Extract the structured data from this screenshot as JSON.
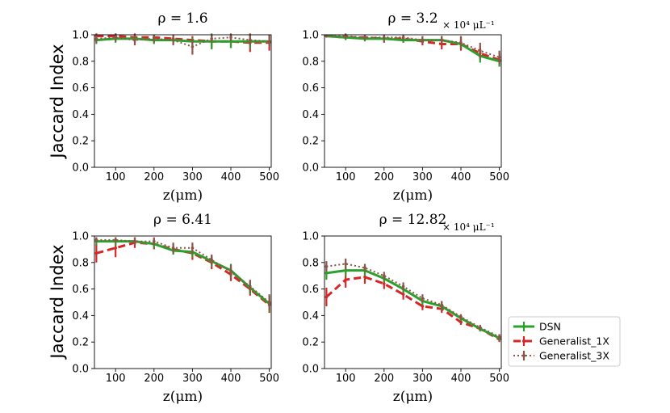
{
  "figure": {
    "shared_ylabel": "Jaccard Index",
    "density_unit": "× 10⁴ μL⁻¹"
  },
  "legend": {
    "entries": [
      {
        "name": "DSN",
        "color": "#2ca02c",
        "style": "solid"
      },
      {
        "name": "Generalist_1X",
        "color": "#d62728",
        "style": "dashed"
      },
      {
        "name": "Generalist_3X",
        "color": "#8c564b",
        "style": "dotted"
      }
    ]
  },
  "chart_data": [
    {
      "type": "line",
      "title": "ρ = 1.6",
      "xlabel": "z(μm)",
      "ylabel": "Jaccard Index",
      "x": [
        50,
        100,
        150,
        200,
        250,
        300,
        350,
        400,
        450,
        500
      ],
      "xlim": [
        45,
        505
      ],
      "ylim": [
        0,
        1.0
      ],
      "xticks": [
        100,
        200,
        300,
        400,
        500
      ],
      "yticks": [
        0.0,
        0.2,
        0.4,
        0.6,
        0.8,
        1.0
      ],
      "ytick_labels": [
        "0.0",
        "0.2",
        "0.4",
        "0.6",
        "0.8",
        "1.0"
      ],
      "series": [
        {
          "name": "DSN",
          "values": [
            0.96,
            0.97,
            0.97,
            0.96,
            0.96,
            0.95,
            0.95,
            0.95,
            0.95,
            0.95
          ],
          "errors": [
            0.03,
            0.03,
            0.03,
            0.03,
            0.03,
            0.03,
            0.06,
            0.05,
            0.05,
            0.04
          ]
        },
        {
          "name": "Generalist_1X",
          "values": [
            0.99,
            0.99,
            0.98,
            0.98,
            0.97,
            0.96,
            0.95,
            0.95,
            0.94,
            0.94
          ],
          "errors": [
            0.02,
            0.02,
            0.03,
            0.02,
            0.03,
            0.03,
            0.05,
            0.05,
            0.07,
            0.06
          ]
        },
        {
          "name": "Generalist_3X",
          "values": [
            0.97,
            0.98,
            0.96,
            0.97,
            0.96,
            0.91,
            0.97,
            0.98,
            0.96,
            0.95
          ],
          "errors": [
            0.03,
            0.03,
            0.04,
            0.03,
            0.04,
            0.06,
            0.03,
            0.03,
            0.04,
            0.04
          ]
        }
      ]
    },
    {
      "type": "line",
      "title": "ρ = 3.2",
      "xlabel": "z(μm)",
      "ylabel": "",
      "x": [
        50,
        100,
        150,
        200,
        250,
        300,
        350,
        400,
        450,
        500
      ],
      "xlim": [
        45,
        505
      ],
      "ylim": [
        0,
        1.0
      ],
      "xticks": [
        100,
        200,
        300,
        400,
        500
      ],
      "yticks": [
        0.0,
        0.2,
        0.4,
        0.6,
        0.8,
        1.0
      ],
      "ytick_labels": [
        "0.0",
        "0.2",
        "0.4",
        "0.6",
        "0.8",
        "1.0"
      ],
      "series": [
        {
          "name": "DSN",
          "values": [
            0.99,
            0.98,
            0.97,
            0.97,
            0.96,
            0.96,
            0.96,
            0.93,
            0.84,
            0.8
          ],
          "errors": [
            0.01,
            0.02,
            0.02,
            0.02,
            0.02,
            0.02,
            0.03,
            0.04,
            0.05,
            0.04
          ]
        },
        {
          "name": "Generalist_1X",
          "values": [
            0.99,
            0.98,
            0.98,
            0.97,
            0.97,
            0.95,
            0.93,
            0.93,
            0.86,
            0.81
          ],
          "errors": [
            0.01,
            0.02,
            0.02,
            0.03,
            0.03,
            0.03,
            0.04,
            0.05,
            0.05,
            0.05
          ]
        },
        {
          "name": "Generalist_3X",
          "values": [
            0.99,
            0.99,
            0.98,
            0.98,
            0.98,
            0.96,
            0.96,
            0.94,
            0.88,
            0.83
          ],
          "errors": [
            0.01,
            0.02,
            0.02,
            0.02,
            0.02,
            0.03,
            0.03,
            0.05,
            0.06,
            0.05
          ]
        }
      ]
    },
    {
      "type": "line",
      "title": "ρ = 6.41",
      "xlabel": "z(μm)",
      "ylabel": "Jaccard Index",
      "x": [
        50,
        100,
        150,
        200,
        250,
        300,
        350,
        400,
        450,
        500
      ],
      "xlim": [
        45,
        505
      ],
      "ylim": [
        0,
        1.0
      ],
      "xticks": [
        100,
        200,
        300,
        400,
        500
      ],
      "yticks": [
        0.0,
        0.2,
        0.4,
        0.6,
        0.8,
        1.0
      ],
      "ytick_labels": [
        "0.0",
        "0.2",
        "0.4",
        "0.6",
        "0.8",
        "1.0"
      ],
      "series": [
        {
          "name": "DSN",
          "values": [
            0.96,
            0.96,
            0.96,
            0.94,
            0.89,
            0.88,
            0.81,
            0.74,
            0.61,
            0.49
          ],
          "errors": [
            0.03,
            0.03,
            0.02,
            0.03,
            0.03,
            0.04,
            0.04,
            0.05,
            0.05,
            0.06
          ]
        },
        {
          "name": "Generalist_1X",
          "values": [
            0.87,
            0.91,
            0.95,
            0.94,
            0.9,
            0.87,
            0.8,
            0.71,
            0.6,
            0.48
          ],
          "errors": [
            0.07,
            0.07,
            0.04,
            0.04,
            0.04,
            0.05,
            0.05,
            0.05,
            0.05,
            0.06
          ]
        },
        {
          "name": "Generalist_3X",
          "values": [
            0.97,
            0.97,
            0.96,
            0.96,
            0.91,
            0.91,
            0.82,
            0.73,
            0.62,
            0.5
          ],
          "errors": [
            0.02,
            0.02,
            0.03,
            0.03,
            0.04,
            0.04,
            0.04,
            0.05,
            0.05,
            0.06
          ]
        }
      ]
    },
    {
      "type": "line",
      "title": "ρ = 12.82",
      "xlabel": "z(μm)",
      "ylabel": "",
      "x": [
        50,
        100,
        150,
        200,
        250,
        300,
        350,
        400,
        450,
        500
      ],
      "xlim": [
        45,
        505
      ],
      "ylim": [
        0,
        1.0
      ],
      "xticks": [
        100,
        200,
        300,
        400,
        500
      ],
      "yticks": [
        0.0,
        0.2,
        0.4,
        0.6,
        0.8,
        1.0
      ],
      "ytick_labels": [
        "0.0",
        "0.2",
        "0.4",
        "0.6",
        "0.8",
        "1.0"
      ],
      "series": [
        {
          "name": "DSN",
          "values": [
            0.72,
            0.74,
            0.74,
            0.68,
            0.6,
            0.51,
            0.47,
            0.38,
            0.3,
            0.23
          ],
          "errors": [
            0.05,
            0.04,
            0.04,
            0.03,
            0.03,
            0.03,
            0.03,
            0.02,
            0.02,
            0.02
          ]
        },
        {
          "name": "Generalist_1X",
          "values": [
            0.54,
            0.67,
            0.69,
            0.64,
            0.56,
            0.47,
            0.45,
            0.35,
            0.3,
            0.22
          ],
          "errors": [
            0.07,
            0.06,
            0.05,
            0.04,
            0.04,
            0.03,
            0.03,
            0.02,
            0.02,
            0.02
          ]
        },
        {
          "name": "Generalist_3X",
          "values": [
            0.77,
            0.79,
            0.76,
            0.7,
            0.62,
            0.53,
            0.48,
            0.39,
            0.31,
            0.24
          ],
          "errors": [
            0.04,
            0.04,
            0.03,
            0.03,
            0.03,
            0.03,
            0.03,
            0.02,
            0.02,
            0.02
          ]
        }
      ]
    }
  ]
}
